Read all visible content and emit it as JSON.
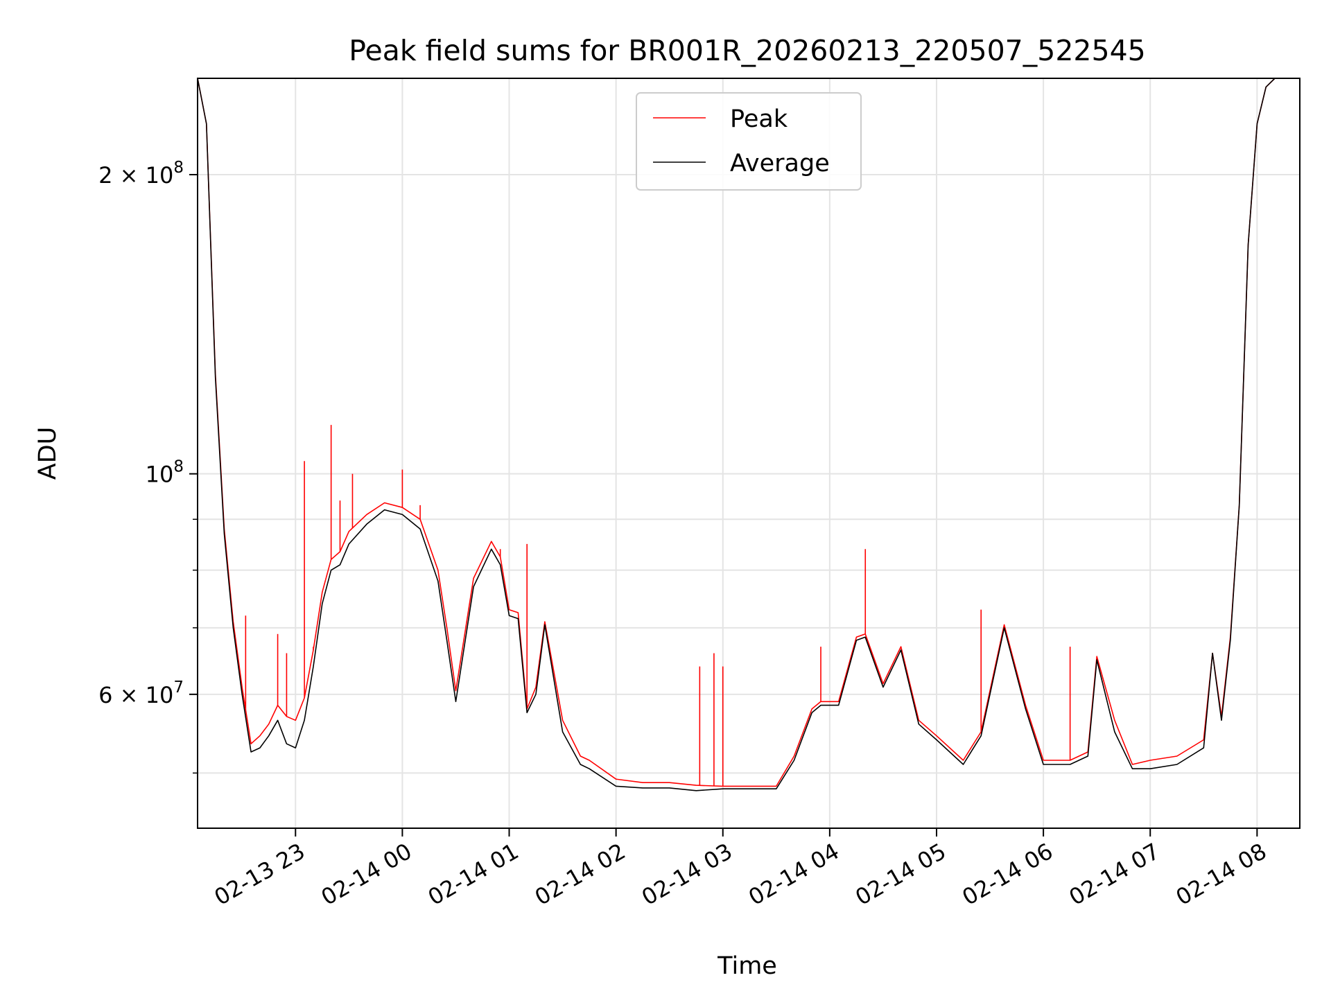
{
  "chart_data": {
    "type": "line",
    "title": "Peak field sums for BR001R_20260213_220507_522545",
    "xlabel": "Time",
    "ylabel": "ADU",
    "yscale": "log",
    "ylim": [
      44000000,
      250000000
    ],
    "xlim": [
      "2026-02-13 22:05",
      "2026-02-14 08:24"
    ],
    "grid": true,
    "legend_position": "upper center",
    "x_ticks": [
      {
        "value": "2026-02-13 23:00",
        "label": "02-13 23"
      },
      {
        "value": "2026-02-14 00:00",
        "label": "02-14 00"
      },
      {
        "value": "2026-02-14 01:00",
        "label": "02-14 01"
      },
      {
        "value": "2026-02-14 02:00",
        "label": "02-14 02"
      },
      {
        "value": "2026-02-14 03:00",
        "label": "02-14 03"
      },
      {
        "value": "2026-02-14 04:00",
        "label": "02-14 04"
      },
      {
        "value": "2026-02-14 05:00",
        "label": "02-14 05"
      },
      {
        "value": "2026-02-14 06:00",
        "label": "02-14 06"
      },
      {
        "value": "2026-02-14 07:00",
        "label": "02-14 07"
      },
      {
        "value": "2026-02-14 08:00",
        "label": "02-14 08"
      }
    ],
    "y_major_ticks": [
      {
        "value": 60000000,
        "mant": "6",
        "exp": "7"
      },
      {
        "value": 100000000,
        "mant": "",
        "exp": "8"
      },
      {
        "value": 200000000,
        "mant": "2",
        "exp": "8"
      }
    ],
    "y_minor_ticks": [
      50000000,
      70000000,
      80000000,
      90000000
    ],
    "series": [
      {
        "name": "Average",
        "color": "#000000",
        "x": [
          "2026-02-13 22:05",
          "2026-02-13 22:10",
          "2026-02-13 22:15",
          "2026-02-13 22:20",
          "2026-02-13 22:25",
          "2026-02-13 22:30",
          "2026-02-13 22:35",
          "2026-02-13 22:40",
          "2026-02-13 22:45",
          "2026-02-13 22:50",
          "2026-02-13 22:55",
          "2026-02-13 23:00",
          "2026-02-13 23:05",
          "2026-02-13 23:10",
          "2026-02-13 23:15",
          "2026-02-13 23:20",
          "2026-02-13 23:25",
          "2026-02-13 23:30",
          "2026-02-13 23:40",
          "2026-02-13 23:50",
          "2026-02-14 00:00",
          "2026-02-14 00:10",
          "2026-02-14 00:20",
          "2026-02-14 00:25",
          "2026-02-14 00:30",
          "2026-02-14 00:40",
          "2026-02-14 00:50",
          "2026-02-14 00:55",
          "2026-02-14 01:00",
          "2026-02-14 01:05",
          "2026-02-14 01:10",
          "2026-02-14 01:15",
          "2026-02-14 01:20",
          "2026-02-14 01:30",
          "2026-02-14 01:40",
          "2026-02-14 01:45",
          "2026-02-14 02:00",
          "2026-02-14 02:15",
          "2026-02-14 02:30",
          "2026-02-14 02:45",
          "2026-02-14 03:00",
          "2026-02-14 03:15",
          "2026-02-14 03:30",
          "2026-02-14 03:40",
          "2026-02-14 03:50",
          "2026-02-14 03:55",
          "2026-02-14 04:05",
          "2026-02-14 04:15",
          "2026-02-14 04:20",
          "2026-02-14 04:30",
          "2026-02-14 04:40",
          "2026-02-14 04:50",
          "2026-02-14 05:00",
          "2026-02-14 05:15",
          "2026-02-14 05:25",
          "2026-02-14 05:38",
          "2026-02-14 05:50",
          "2026-02-14 06:00",
          "2026-02-14 06:15",
          "2026-02-14 06:25",
          "2026-02-14 06:30",
          "2026-02-14 06:40",
          "2026-02-14 06:50",
          "2026-02-14 07:00",
          "2026-02-14 07:15",
          "2026-02-14 07:30",
          "2026-02-14 07:35",
          "2026-02-14 07:40",
          "2026-02-14 07:45",
          "2026-02-14 07:50",
          "2026-02-14 07:55",
          "2026-02-14 08:00",
          "2026-02-14 08:05",
          "2026-02-14 08:10",
          "2026-02-14 08:15",
          "2026-02-14 08:24"
        ],
        "values": [
          250000000,
          225000000,
          125000000,
          87000000,
          70000000,
          60000000,
          52500000,
          53000000,
          54500000,
          56500000,
          53500000,
          53000000,
          56500000,
          64000000,
          74000000,
          80000000,
          81000000,
          85000000,
          89000000,
          92000000,
          91000000,
          88000000,
          78000000,
          68000000,
          59000000,
          77000000,
          84000000,
          81000000,
          72000000,
          71500000,
          57500000,
          60000000,
          70500000,
          55000000,
          51000000,
          50500000,
          48500000,
          48300000,
          48300000,
          48000000,
          48200000,
          48200000,
          48200000,
          51500000,
          57500000,
          58500000,
          58500000,
          68000000,
          68500000,
          61000000,
          66500000,
          56000000,
          54000000,
          51000000,
          54500000,
          70000000,
          58000000,
          51000000,
          51000000,
          52000000,
          65000000,
          55000000,
          50500000,
          50500000,
          51000000,
          53000000,
          66000000,
          56500000,
          68000000,
          93000000,
          170000000,
          225000000,
          245000000,
          250000000,
          250000000,
          250000000
        ]
      },
      {
        "name": "Peak",
        "color": "#ff0000",
        "x": [
          "2026-02-13 22:05",
          "2026-02-13 22:10",
          "2026-02-13 22:15",
          "2026-02-13 22:20",
          "2026-02-13 22:25",
          "2026-02-13 22:30",
          "2026-02-13 22:35",
          "2026-02-13 22:40",
          "2026-02-13 22:45",
          "2026-02-13 22:50",
          "2026-02-13 22:55",
          "2026-02-13 23:00",
          "2026-02-13 23:05",
          "2026-02-13 23:10",
          "2026-02-13 23:15",
          "2026-02-13 23:20",
          "2026-02-13 23:25",
          "2026-02-13 23:30",
          "2026-02-13 23:40",
          "2026-02-13 23:50",
          "2026-02-14 00:00",
          "2026-02-14 00:10",
          "2026-02-14 00:20",
          "2026-02-14 00:25",
          "2026-02-14 00:30",
          "2026-02-14 00:40",
          "2026-02-14 00:50",
          "2026-02-14 00:55",
          "2026-02-14 01:00",
          "2026-02-14 01:05",
          "2026-02-14 01:10",
          "2026-02-14 01:15",
          "2026-02-14 01:20",
          "2026-02-14 01:30",
          "2026-02-14 01:40",
          "2026-02-14 01:45",
          "2026-02-14 02:00",
          "2026-02-14 02:15",
          "2026-02-14 02:30",
          "2026-02-14 02:45",
          "2026-02-14 03:00",
          "2026-02-14 03:15",
          "2026-02-14 03:30",
          "2026-02-14 03:40",
          "2026-02-14 03:50",
          "2026-02-14 03:55",
          "2026-02-14 04:05",
          "2026-02-14 04:15",
          "2026-02-14 04:20",
          "2026-02-14 04:30",
          "2026-02-14 04:40",
          "2026-02-14 04:50",
          "2026-02-14 05:00",
          "2026-02-14 05:15",
          "2026-02-14 05:25",
          "2026-02-14 05:38",
          "2026-02-14 05:50",
          "2026-02-14 06:00",
          "2026-02-14 06:15",
          "2026-02-14 06:25",
          "2026-02-14 06:30",
          "2026-02-14 06:40",
          "2026-02-14 06:50",
          "2026-02-14 07:00",
          "2026-02-14 07:15",
          "2026-02-14 07:30",
          "2026-02-14 07:35",
          "2026-02-14 07:40",
          "2026-02-14 07:45",
          "2026-02-14 07:50",
          "2026-02-14 07:55",
          "2026-02-14 08:00",
          "2026-02-14 08:05",
          "2026-02-14 08:10",
          "2026-02-14 08:15",
          "2026-02-14 08:24"
        ],
        "values": [
          250000000,
          225000000,
          126000000,
          88000000,
          71000000,
          61000000,
          53500000,
          54500000,
          56000000,
          58500000,
          57000000,
          56500000,
          59500000,
          66500000,
          76000000,
          82000000,
          83500000,
          87500000,
          91000000,
          93500000,
          92500000,
          90000000,
          80000000,
          70000000,
          60500000,
          78500000,
          85500000,
          82500000,
          73000000,
          72500000,
          58000000,
          61000000,
          71000000,
          56500000,
          52000000,
          51500000,
          49300000,
          48900000,
          48900000,
          48600000,
          48500000,
          48500000,
          48500000,
          52000000,
          58000000,
          59000000,
          59000000,
          68500000,
          69000000,
          61500000,
          67000000,
          56500000,
          54500000,
          51500000,
          55000000,
          70500000,
          58500000,
          51500000,
          51500000,
          52500000,
          65500000,
          56500000,
          51000000,
          51500000,
          52000000,
          54000000,
          66000000,
          57000000,
          68500000,
          93000000,
          170000000,
          225000000,
          245000000,
          250000000,
          250000000,
          250000000
        ],
        "spikes": [
          {
            "x": "2026-02-13 22:32",
            "value": 72000000
          },
          {
            "x": "2026-02-13 22:50",
            "value": 69000000
          },
          {
            "x": "2026-02-13 22:55",
            "value": 66000000
          },
          {
            "x": "2026-02-13 23:05",
            "value": 103000000
          },
          {
            "x": "2026-02-13 23:10",
            "value": 67000000
          },
          {
            "x": "2026-02-13 23:20",
            "value": 112000000
          },
          {
            "x": "2026-02-13 23:25",
            "value": 94000000
          },
          {
            "x": "2026-02-13 23:32",
            "value": 100000000
          },
          {
            "x": "2026-02-14 00:00",
            "value": 101000000
          },
          {
            "x": "2026-02-14 00:10",
            "value": 93000000
          },
          {
            "x": "2026-02-14 00:55",
            "value": 84000000
          },
          {
            "x": "2026-02-14 01:10",
            "value": 85000000
          },
          {
            "x": "2026-02-14 02:47",
            "value": 64000000
          },
          {
            "x": "2026-02-14 02:55",
            "value": 66000000
          },
          {
            "x": "2026-02-14 03:00",
            "value": 64000000
          },
          {
            "x": "2026-02-14 03:55",
            "value": 67000000
          },
          {
            "x": "2026-02-14 04:20",
            "value": 84000000
          },
          {
            "x": "2026-02-14 05:25",
            "value": 73000000
          },
          {
            "x": "2026-02-14 06:15",
            "value": 67000000
          }
        ]
      }
    ],
    "legend": [
      "Peak",
      "Average"
    ]
  }
}
